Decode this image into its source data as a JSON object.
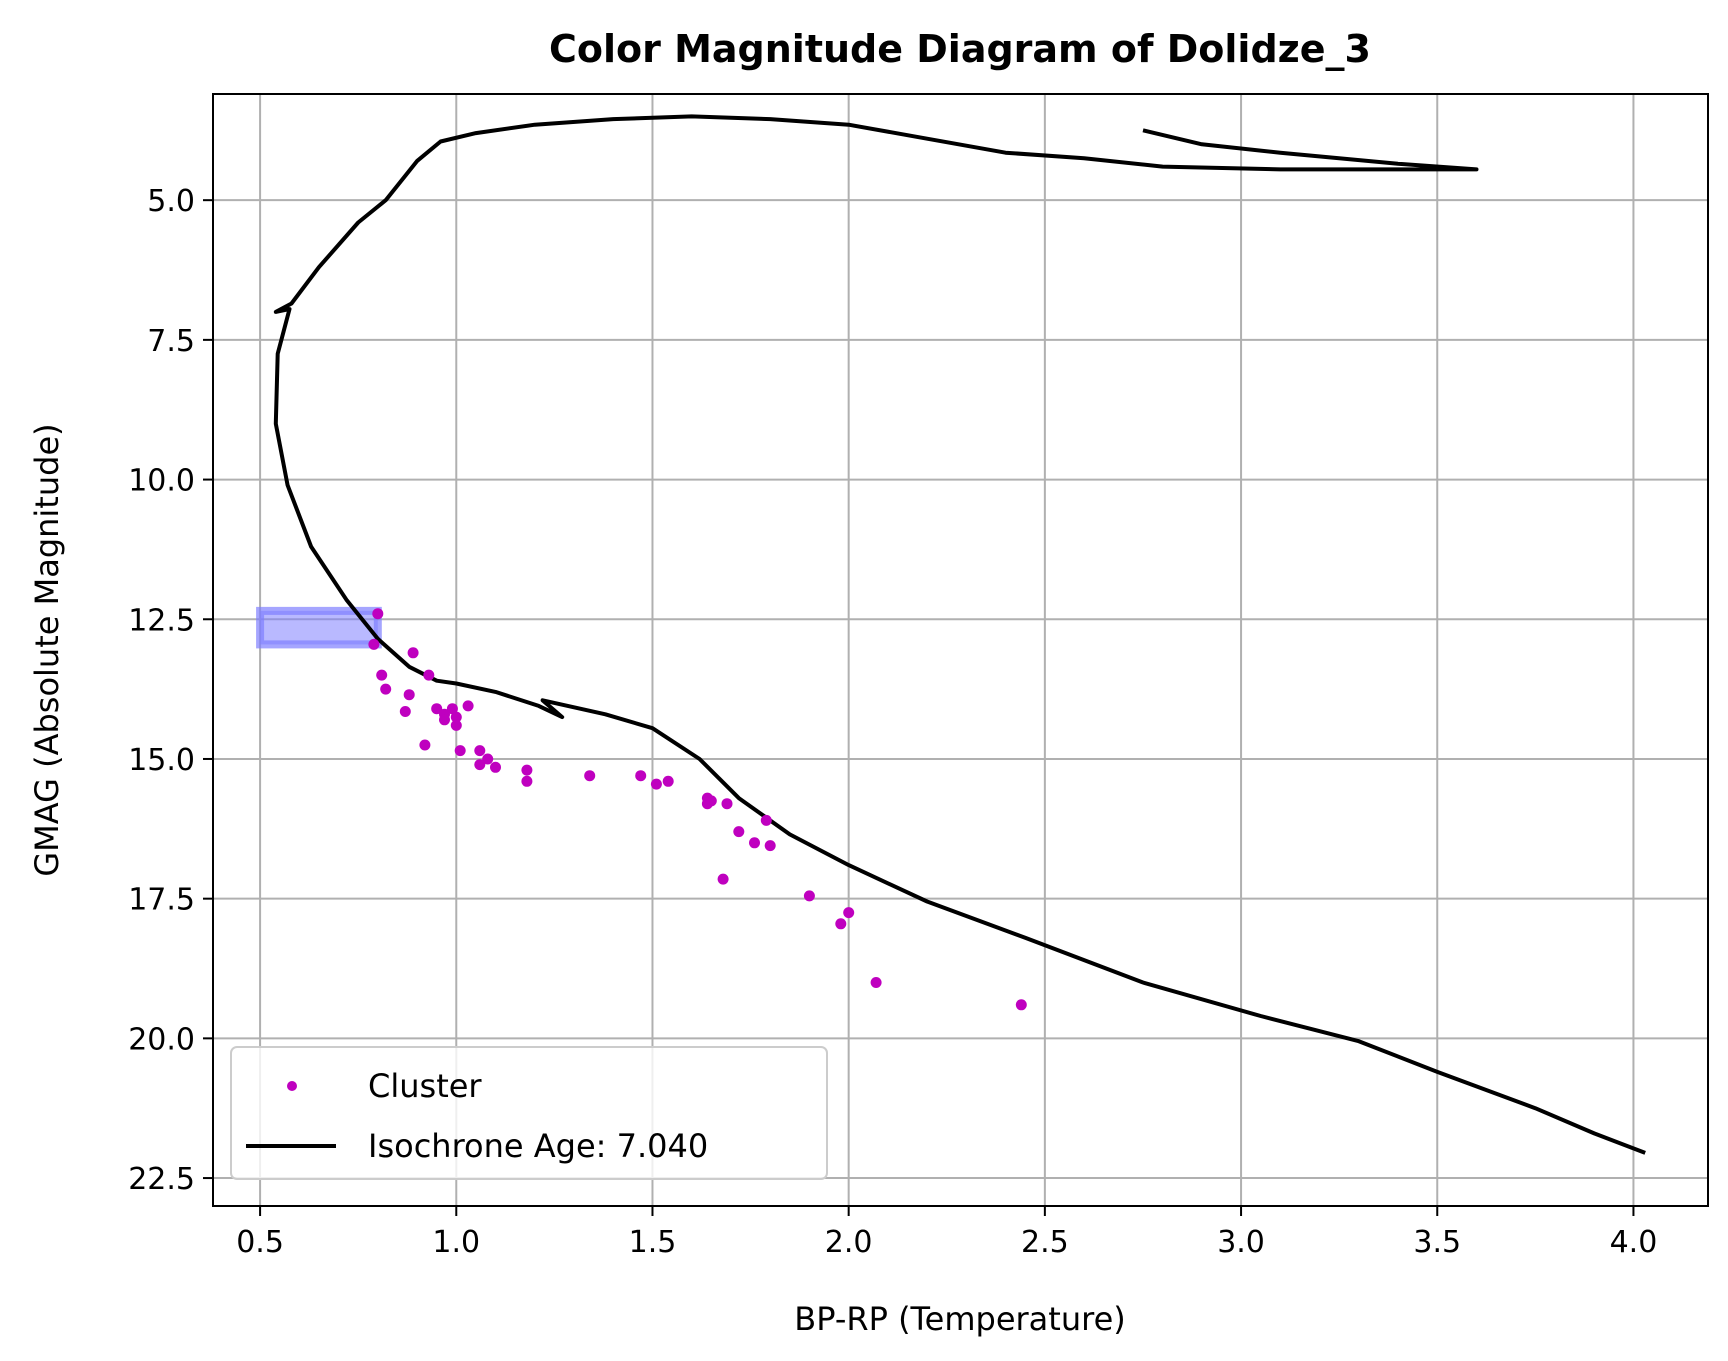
{
  "chart_data": {
    "type": "scatter",
    "title": "Color Magnitude Diagram of Dolidze_3",
    "xlabel": "BP-RP (Temperature)",
    "ylabel": "GMAG (Absolute Magnitude)",
    "xlim": [
      0.38,
      4.19
    ],
    "ylim": [
      23.0,
      3.1
    ],
    "y_inverted": true,
    "grid": true,
    "xticks": [
      0.5,
      1.0,
      1.5,
      2.0,
      2.5,
      3.0,
      3.5,
      4.0
    ],
    "xtick_labels": [
      "0.5",
      "1.0",
      "1.5",
      "2.0",
      "2.5",
      "3.0",
      "3.5",
      "4.0"
    ],
    "yticks": [
      5.0,
      7.5,
      10.0,
      12.5,
      15.0,
      17.5,
      20.0,
      22.5
    ],
    "ytick_labels": [
      "5.0",
      "7.5",
      "10.0",
      "12.5",
      "15.0",
      "17.5",
      "20.0",
      "22.5"
    ],
    "legend_position": "lower-left",
    "series": [
      {
        "name": "Cluster",
        "kind": "scatter",
        "color": "#bf00bf",
        "points": [
          [
            0.8,
            12.4
          ],
          [
            0.79,
            12.95
          ],
          [
            0.89,
            13.1
          ],
          [
            0.81,
            13.5
          ],
          [
            0.93,
            13.5
          ],
          [
            0.82,
            13.75
          ],
          [
            0.88,
            13.85
          ],
          [
            0.87,
            14.15
          ],
          [
            0.95,
            14.1
          ],
          [
            0.97,
            14.2
          ],
          [
            0.99,
            14.1
          ],
          [
            0.97,
            14.3
          ],
          [
            1.0,
            14.25
          ],
          [
            1.0,
            14.4
          ],
          [
            1.03,
            14.05
          ],
          [
            0.92,
            14.75
          ],
          [
            1.01,
            14.85
          ],
          [
            1.06,
            14.85
          ],
          [
            1.08,
            15.0
          ],
          [
            1.06,
            15.1
          ],
          [
            1.1,
            15.15
          ],
          [
            1.18,
            15.2
          ],
          [
            1.18,
            15.4
          ],
          [
            1.34,
            15.3
          ],
          [
            1.47,
            15.3
          ],
          [
            1.51,
            15.45
          ],
          [
            1.54,
            15.4
          ],
          [
            1.64,
            15.7
          ],
          [
            1.64,
            15.8
          ],
          [
            1.65,
            15.75
          ],
          [
            1.69,
            15.8
          ],
          [
            1.79,
            16.1
          ],
          [
            1.72,
            16.3
          ],
          [
            1.76,
            16.5
          ],
          [
            1.8,
            16.55
          ],
          [
            1.68,
            17.15
          ],
          [
            1.9,
            17.45
          ],
          [
            2.0,
            17.75
          ],
          [
            1.98,
            17.95
          ],
          [
            2.07,
            19.0
          ],
          [
            2.44,
            19.4
          ]
        ]
      },
      {
        "name": "Isochrone Age: 7.040",
        "kind": "line",
        "color": "#000000",
        "points": [
          [
            4.03,
            22.05
          ],
          [
            3.9,
            21.7
          ],
          [
            3.75,
            21.25
          ],
          [
            3.5,
            20.6
          ],
          [
            3.3,
            20.05
          ],
          [
            3.05,
            19.6
          ],
          [
            2.75,
            19.0
          ],
          [
            2.45,
            18.2
          ],
          [
            2.2,
            17.55
          ],
          [
            2.0,
            16.9
          ],
          [
            1.85,
            16.35
          ],
          [
            1.72,
            15.7
          ],
          [
            1.62,
            15.0
          ],
          [
            1.5,
            14.45
          ],
          [
            1.38,
            14.2
          ],
          [
            1.22,
            13.95
          ],
          [
            1.27,
            14.25
          ],
          [
            1.21,
            14.05
          ],
          [
            1.1,
            13.8
          ],
          [
            1.0,
            13.65
          ],
          [
            0.95,
            13.6
          ],
          [
            0.88,
            13.35
          ],
          [
            0.8,
            12.85
          ],
          [
            0.72,
            12.15
          ],
          [
            0.63,
            11.2
          ],
          [
            0.57,
            10.1
          ],
          [
            0.54,
            9.0
          ],
          [
            0.545,
            7.75
          ],
          [
            0.575,
            6.95
          ],
          [
            0.54,
            7.0
          ],
          [
            0.58,
            6.85
          ],
          [
            0.65,
            6.2
          ],
          [
            0.75,
            5.4
          ],
          [
            0.82,
            5.0
          ],
          [
            0.9,
            4.3
          ],
          [
            0.96,
            3.95
          ],
          [
            1.05,
            3.8
          ],
          [
            1.2,
            3.65
          ],
          [
            1.4,
            3.55
          ],
          [
            1.6,
            3.5
          ],
          [
            1.8,
            3.55
          ],
          [
            2.0,
            3.65
          ],
          [
            2.2,
            3.9
          ],
          [
            2.4,
            4.15
          ],
          [
            2.6,
            4.25
          ],
          [
            2.8,
            4.4
          ],
          [
            3.1,
            4.45
          ],
          [
            3.4,
            4.45
          ],
          [
            3.6,
            4.45
          ],
          [
            3.4,
            4.35
          ],
          [
            3.1,
            4.15
          ],
          [
            2.9,
            4.0
          ],
          [
            2.75,
            3.75
          ]
        ]
      }
    ],
    "highlight_box": {
      "color": "#7f7fff",
      "x": [
        0.5,
        0.8
      ],
      "y": [
        12.35,
        12.95
      ]
    }
  }
}
